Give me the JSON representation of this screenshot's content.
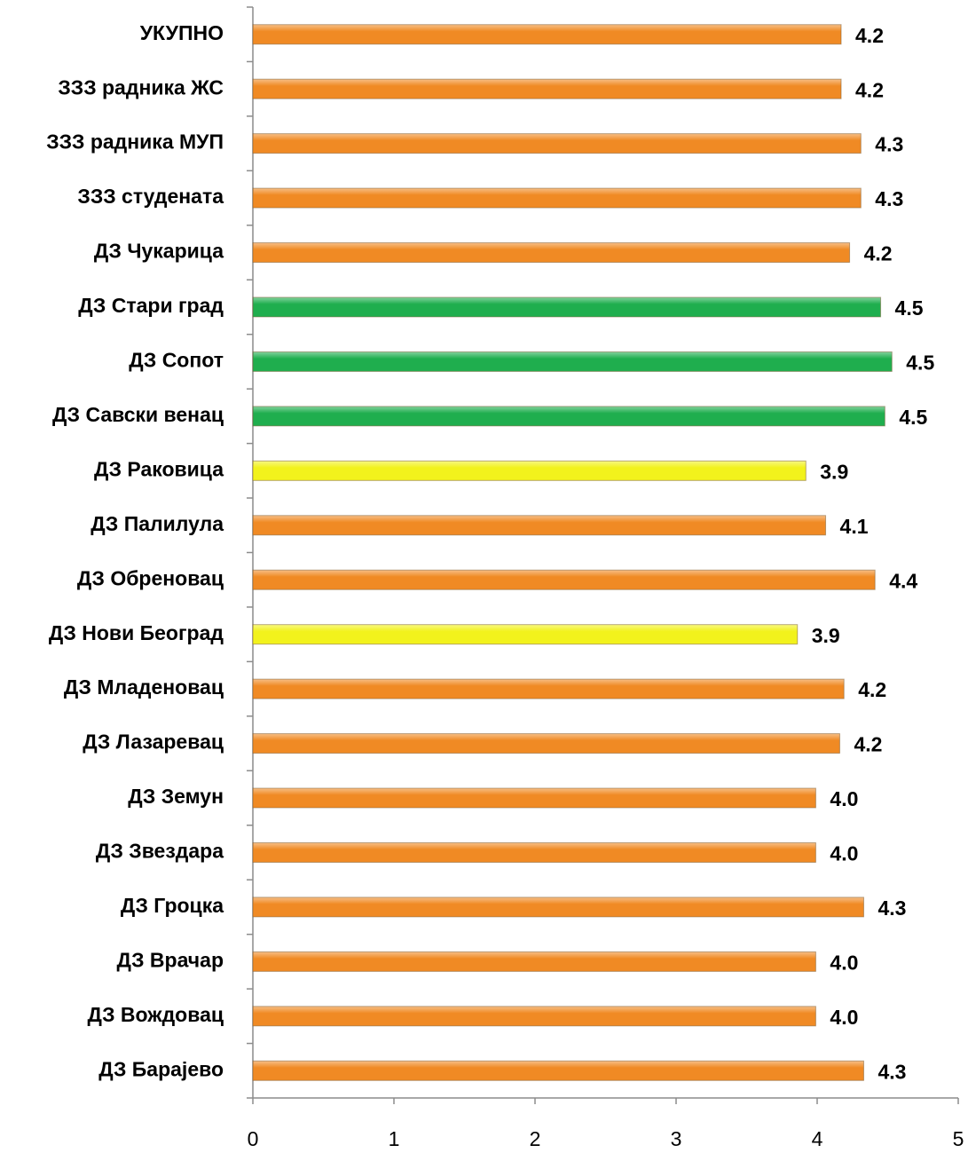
{
  "chart_data": {
    "type": "barh",
    "categories": [
      "УКУПНО",
      "ЗЗЗ радника ЖС",
      "ЗЗЗ радника МУП",
      "ЗЗЗ студената",
      "ДЗ Чукарица",
      "ДЗ Стари град",
      "ДЗ Сопот",
      "ДЗ Савски венац",
      "ДЗ Раковица",
      "ДЗ Палилула",
      "ДЗ Обреновац",
      "ДЗ Нови Београд",
      "ДЗ Младеновац",
      "ДЗ Лазаревац",
      "ДЗ Земун",
      "ДЗ Звездара",
      "ДЗ Гроцка",
      "ДЗ Врачар",
      "ДЗ Вождовац",
      "ДЗ Барајево"
    ],
    "values": [
      4.17,
      4.17,
      4.31,
      4.31,
      4.23,
      4.45,
      4.53,
      4.48,
      3.92,
      4.06,
      4.41,
      3.86,
      4.19,
      4.16,
      3.99,
      3.99,
      4.33,
      3.99,
      3.99,
      4.33
    ],
    "value_labels": [
      "4.2",
      "4.2",
      "4.3",
      "4.3",
      "4.2",
      "4.5",
      "4.5",
      "4.5",
      "3.9",
      "4.1",
      "4.4",
      "3.9",
      "4.2",
      "4.2",
      "4.0",
      "4.0",
      "4.3",
      "4.0",
      "4.0",
      "4.3"
    ],
    "colors": [
      "#f08a24",
      "#f08a24",
      "#f08a24",
      "#f08a24",
      "#f08a24",
      "#1fae4e",
      "#1fae4e",
      "#1fae4e",
      "#f2f21c",
      "#f08a24",
      "#f08a24",
      "#f2f21c",
      "#f08a24",
      "#f08a24",
      "#f08a24",
      "#f08a24",
      "#f08a24",
      "#f08a24",
      "#f08a24",
      "#f08a24"
    ],
    "xlim": [
      0,
      5
    ],
    "xticks": [
      0,
      1,
      2,
      3,
      4,
      5
    ]
  }
}
